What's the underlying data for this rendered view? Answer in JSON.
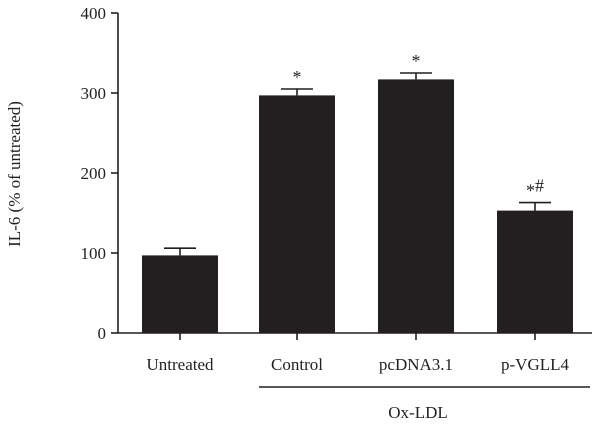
{
  "chart_data": {
    "type": "bar",
    "title": "",
    "xlabel": "",
    "ylabel": "IL-6 (% of untreated)",
    "ylim": [
      0,
      400
    ],
    "yticks": [
      0,
      100,
      200,
      300,
      400
    ],
    "categories": [
      "Untreated",
      "Control",
      "pcDNA3.1",
      "p-VGLL4"
    ],
    "values": [
      97,
      297,
      317,
      153
    ],
    "errors": [
      9,
      8,
      8,
      10
    ],
    "annotations": [
      "",
      "*",
      "*",
      "*#"
    ],
    "group_label": "Ox-LDL",
    "group_categories": [
      "Control",
      "pcDNA3.1",
      "p-VGLL4"
    ],
    "bar_color": "#231f20",
    "grid": false,
    "legend": "none"
  }
}
